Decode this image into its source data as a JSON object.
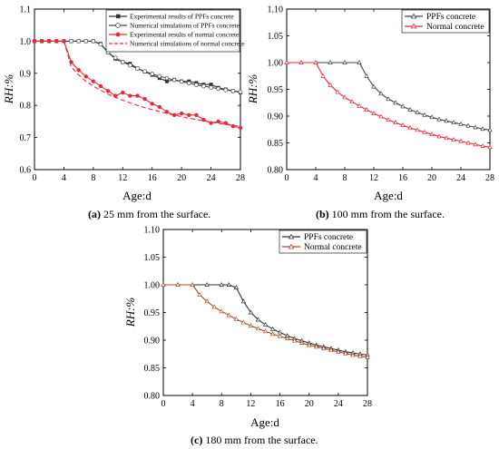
{
  "chart_data": [
    {
      "type": "line",
      "caption_letter": "(a)",
      "caption_text": " 25 mm from the surface.",
      "xlabel": "Age:d",
      "ylabel": "RH:%",
      "xlim": [
        0,
        28
      ],
      "ylim": [
        0.6,
        1.1
      ],
      "xticks": [
        "0",
        "4",
        "8",
        "12",
        "16",
        "20",
        "24",
        "28"
      ],
      "yticks": [
        "0.6",
        "0.7",
        "0.8",
        "0.9",
        "1.0",
        "1.1"
      ],
      "legend_position": "top-right",
      "series": [
        {
          "name": "Experimental results of PPFs concrete",
          "color": "#333333",
          "marker": "square",
          "style": "solid",
          "x": [
            0,
            1,
            2,
            3,
            4,
            5,
            6,
            7,
            8,
            9,
            10,
            11,
            12,
            13,
            14,
            15,
            16,
            17,
            18,
            19,
            20,
            21,
            22,
            23,
            24,
            25,
            26,
            27,
            28
          ],
          "y": [
            1.0,
            1.0,
            1.0,
            1.0,
            1.0,
            1.0,
            1.0,
            1.0,
            1.0,
            0.992,
            0.965,
            0.945,
            0.935,
            0.93,
            0.915,
            0.905,
            0.895,
            0.885,
            0.875,
            0.88,
            0.875,
            0.875,
            0.87,
            0.865,
            0.865,
            0.855,
            0.85,
            0.845,
            0.84
          ]
        },
        {
          "name": "Numerical simulations of PPFs concrete",
          "color": "#444444",
          "marker": "open-circle",
          "style": "solid",
          "x": [
            0,
            1,
            2,
            3,
            4,
            5,
            6,
            7,
            8,
            9,
            10,
            11,
            12,
            13,
            14,
            15,
            16,
            17,
            18,
            19,
            20,
            21,
            22,
            23,
            24,
            25,
            26,
            27,
            28
          ],
          "y": [
            1.0,
            1.0,
            1.0,
            1.0,
            1.0,
            1.0,
            1.0,
            1.0,
            1.0,
            0.99,
            0.965,
            0.948,
            0.935,
            0.925,
            0.915,
            0.906,
            0.898,
            0.891,
            0.885,
            0.879,
            0.874,
            0.869,
            0.864,
            0.86,
            0.856,
            0.852,
            0.848,
            0.845,
            0.842
          ]
        },
        {
          "name": "Experimental results of normal concrete",
          "color": "#e8293a",
          "marker": "filled-circle",
          "style": "solid",
          "x": [
            0,
            1,
            2,
            3,
            4,
            5,
            6,
            7,
            8,
            9,
            10,
            11,
            12,
            13,
            14,
            15,
            16,
            17,
            18,
            19,
            20,
            21,
            22,
            23,
            24,
            25,
            26,
            27,
            28
          ],
          "y": [
            1.0,
            1.0,
            1.0,
            1.0,
            1.0,
            0.935,
            0.91,
            0.89,
            0.875,
            0.86,
            0.845,
            0.83,
            0.84,
            0.83,
            0.83,
            0.82,
            0.805,
            0.795,
            0.78,
            0.77,
            0.775,
            0.77,
            0.77,
            0.755,
            0.745,
            0.75,
            0.745,
            0.735,
            0.73
          ]
        },
        {
          "name": "Numerical simulations of normal concrete",
          "color": "#e8293a",
          "marker": "none",
          "style": "dashed",
          "x": [
            0,
            1,
            2,
            3,
            4,
            5,
            6,
            7,
            8,
            9,
            10,
            11,
            12,
            13,
            14,
            15,
            16,
            17,
            18,
            19,
            20,
            21,
            22,
            23,
            24,
            25,
            26,
            27,
            28
          ],
          "y": [
            1.0,
            1.0,
            1.0,
            1.0,
            1.0,
            0.92,
            0.895,
            0.875,
            0.86,
            0.847,
            0.835,
            0.825,
            0.816,
            0.808,
            0.8,
            0.793,
            0.787,
            0.781,
            0.775,
            0.77,
            0.765,
            0.76,
            0.756,
            0.752,
            0.748,
            0.744,
            0.741,
            0.738,
            0.735
          ]
        }
      ]
    },
    {
      "type": "line",
      "caption_letter": "(b)",
      "caption_text": " 100 mm from the surface.",
      "xlabel": "Age:d",
      "ylabel": "RH:%",
      "xlim": [
        0,
        28
      ],
      "ylim": [
        0.8,
        1.1
      ],
      "xticks": [
        "0",
        "4",
        "8",
        "12",
        "16",
        "20",
        "24",
        "28"
      ],
      "yticks": [
        "0.80",
        "0.85",
        "0.90",
        "0.95",
        "1.00",
        "1.05",
        "1.10"
      ],
      "legend_position": "top-right",
      "series": [
        {
          "name": "PPFs concrete",
          "color": "#444444",
          "marker": "open-triangle",
          "style": "solid",
          "x": [
            0,
            2,
            4,
            6,
            8,
            10,
            11,
            12,
            13,
            14,
            15,
            16,
            17,
            18,
            19,
            20,
            21,
            22,
            23,
            24,
            25,
            26,
            27,
            28
          ],
          "y": [
            1.0,
            1.0,
            1.0,
            1.0,
            1.0,
            1.0,
            0.975,
            0.955,
            0.942,
            0.932,
            0.925,
            0.918,
            0.912,
            0.907,
            0.902,
            0.898,
            0.894,
            0.891,
            0.888,
            0.885,
            0.882,
            0.879,
            0.876,
            0.874
          ]
        },
        {
          "name": "Normal concrete",
          "color": "#e8293a",
          "marker": "open-triangle",
          "style": "solid",
          "x": [
            0,
            2,
            4,
            5,
            6,
            7,
            8,
            9,
            10,
            11,
            12,
            13,
            14,
            15,
            16,
            17,
            18,
            19,
            20,
            21,
            22,
            23,
            24,
            25,
            26,
            27,
            28
          ],
          "y": [
            1.0,
            1.0,
            1.0,
            0.975,
            0.958,
            0.945,
            0.935,
            0.927,
            0.919,
            0.912,
            0.905,
            0.899,
            0.893,
            0.888,
            0.883,
            0.878,
            0.874,
            0.87,
            0.866,
            0.862,
            0.859,
            0.856,
            0.853,
            0.85,
            0.847,
            0.844,
            0.842
          ]
        }
      ]
    },
    {
      "type": "line",
      "caption_letter": "(c)",
      "caption_text": " 180 mm from the surface.",
      "xlabel": "Age:d",
      "ylabel": "RH:%",
      "xlim": [
        0,
        28
      ],
      "ylim": [
        0.8,
        1.1
      ],
      "xticks": [
        "0",
        "4",
        "8",
        "12",
        "16",
        "20",
        "24",
        "28"
      ],
      "yticks": [
        "0.80",
        "0.85",
        "0.90",
        "0.95",
        "1.00",
        "1.05",
        "1.10"
      ],
      "legend_position": "top-right",
      "series": [
        {
          "name": "PPFs concrete",
          "color": "#333333",
          "marker": "open-triangle",
          "style": "solid",
          "x": [
            0,
            2,
            4,
            6,
            8,
            9,
            10,
            11,
            12,
            13,
            14,
            15,
            16,
            17,
            18,
            19,
            20,
            21,
            22,
            23,
            24,
            25,
            26,
            27,
            28
          ],
          "y": [
            1.0,
            1.0,
            1.0,
            1.0,
            1.0,
            1.0,
            0.995,
            0.97,
            0.95,
            0.937,
            0.928,
            0.92,
            0.914,
            0.908,
            0.903,
            0.899,
            0.895,
            0.891,
            0.888,
            0.885,
            0.882,
            0.879,
            0.877,
            0.875,
            0.873
          ]
        },
        {
          "name": "Normal concrete",
          "color": "#a0522d",
          "marker": "open-triangle",
          "style": "solid",
          "x": [
            0,
            2,
            4,
            5,
            6,
            7,
            8,
            9,
            10,
            11,
            12,
            13,
            14,
            15,
            16,
            17,
            18,
            19,
            20,
            21,
            22,
            23,
            24,
            25,
            26,
            27,
            28
          ],
          "y": [
            1.0,
            1.0,
            1.0,
            0.982,
            0.97,
            0.96,
            0.952,
            0.945,
            0.938,
            0.932,
            0.926,
            0.921,
            0.916,
            0.911,
            0.907,
            0.903,
            0.899,
            0.895,
            0.891,
            0.888,
            0.885,
            0.882,
            0.879,
            0.876,
            0.873,
            0.871,
            0.869
          ]
        }
      ]
    }
  ]
}
